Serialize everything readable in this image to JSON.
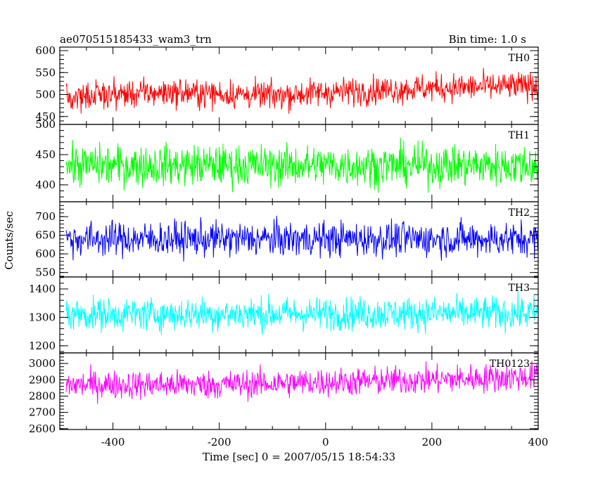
{
  "header": {
    "title": "ae070515185433_wam3_trn",
    "bin_time": "Bin time: 1.0 s"
  },
  "axes": {
    "xlabel": "Time [sec] 0 = 2007/05/15 18:54:33",
    "ylabel": "Counts/sec"
  },
  "chart_data": {
    "type": "line",
    "title": "ae070515185433_wam3_trn",
    "subtitle": "Bin time: 1.0 s",
    "xlabel": "Time [sec] 0 = 2007/05/15 18:54:33",
    "ylabel": "Counts/sec",
    "xlim": [
      -500,
      400
    ],
    "xticks": [
      -400,
      -200,
      0,
      200,
      400
    ],
    "panels": [
      {
        "name": "TH0",
        "color": "#ff0000",
        "ylim": [
          432,
          608
        ],
        "yticks": [
          450,
          500,
          550,
          600
        ],
        "trend": [
          -500,
          495,
          -300,
          505,
          -100,
          498,
          0,
          505,
          200,
          515,
          400,
          520
        ],
        "amplitude": 55,
        "value_range": [
          445,
          608
        ]
      },
      {
        "name": "TH1",
        "color": "#00ff00",
        "ylim": [
          372,
          500
        ],
        "yticks": [
          400,
          450,
          500
        ],
        "trend": [
          -500,
          432,
          400,
          432
        ],
        "amplitude": 58,
        "value_range": [
          375,
          497
        ]
      },
      {
        "name": "TH2",
        "color": "#0000ff",
        "ylim": [
          538,
          740
        ],
        "yticks": [
          550,
          600,
          650,
          700
        ],
        "trend": [
          -500,
          640,
          400,
          640
        ],
        "amplitude": 80,
        "value_range": [
          545,
          735
        ]
      },
      {
        "name": "TH3",
        "color": "#00ffff",
        "ylim": [
          1175,
          1442
        ],
        "yticks": [
          1200,
          1300,
          1400
        ],
        "trend": [
          -500,
          1310,
          400,
          1315
        ],
        "amplitude": 100,
        "value_range": [
          1180,
          1440
        ]
      },
      {
        "name": "TH0123",
        "color": "#ff00ff",
        "ylim": [
          2595,
          3065
        ],
        "yticks": [
          2600,
          2700,
          2800,
          2900,
          3000
        ],
        "trend": [
          -500,
          2870,
          -200,
          2870,
          0,
          2885,
          200,
          2900,
          400,
          2920
        ],
        "amplitude": 150,
        "value_range": [
          2600,
          3045
        ]
      }
    ]
  }
}
